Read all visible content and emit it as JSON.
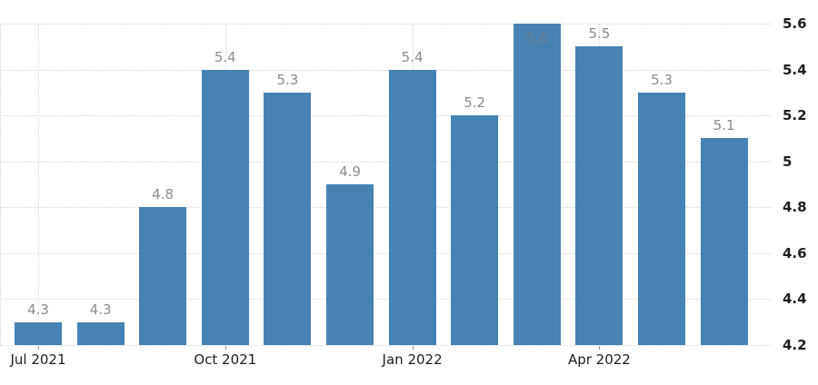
{
  "chart_data": {
    "type": "bar",
    "title": "",
    "xlabel": "",
    "ylabel": "",
    "values": [
      4.3,
      4.3,
      4.8,
      5.4,
      5.3,
      4.9,
      5.4,
      5.2,
      5.6,
      5.5,
      5.3,
      5.1
    ],
    "bar_value_labels": [
      "4.3",
      "4.3",
      "4.8",
      "5.4",
      "5.3",
      "4.9",
      "5.4",
      "5.2",
      "5.6",
      "5.5",
      "5.3",
      "5.1"
    ],
    "x_ticks": [
      {
        "label": "Jul 2021",
        "bar_index": 0
      },
      {
        "label": "Oct 2021",
        "bar_index": 3
      },
      {
        "label": "Jan 2022",
        "bar_index": 6
      },
      {
        "label": "Apr 2022",
        "bar_index": 9
      }
    ],
    "y_ticks": [
      "4.2",
      "4.4",
      "4.6",
      "4.8",
      "5",
      "5.2",
      "5.4",
      "5.6"
    ],
    "ylim": [
      4.2,
      5.6
    ],
    "y_axis_side": "right",
    "grid": "dotted",
    "legend": "none",
    "colors": {
      "bar": "#4682b4",
      "grid": "#d4d4d4",
      "value_label": "#8b8b8b",
      "value_label_inside": "#6e7f90",
      "axis_label": "#1f1f1f",
      "tick_mark": "#9a9a9a"
    }
  }
}
